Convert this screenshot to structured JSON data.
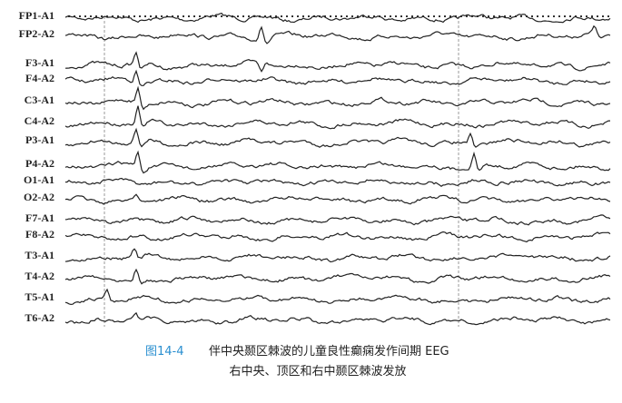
{
  "channels": [
    "FP1-A1",
    "FP2-A2",
    "F3-A1",
    "F4-A2",
    "C3-A1",
    "C4-A2",
    "P3-A1",
    "P4-A2",
    "O1-A1",
    "O2-A2",
    "F7-A1",
    "F8-A2",
    "T3-A1",
    "T4-A2",
    "T5-A1",
    "T6-A2"
  ],
  "caption": {
    "figure_number": "图14-4",
    "title": "伴中央颞区棘波的儿童良性癫痫发作间期 EEG",
    "subtitle": "右中央、顶区和右中颞区棘波发放"
  }
}
